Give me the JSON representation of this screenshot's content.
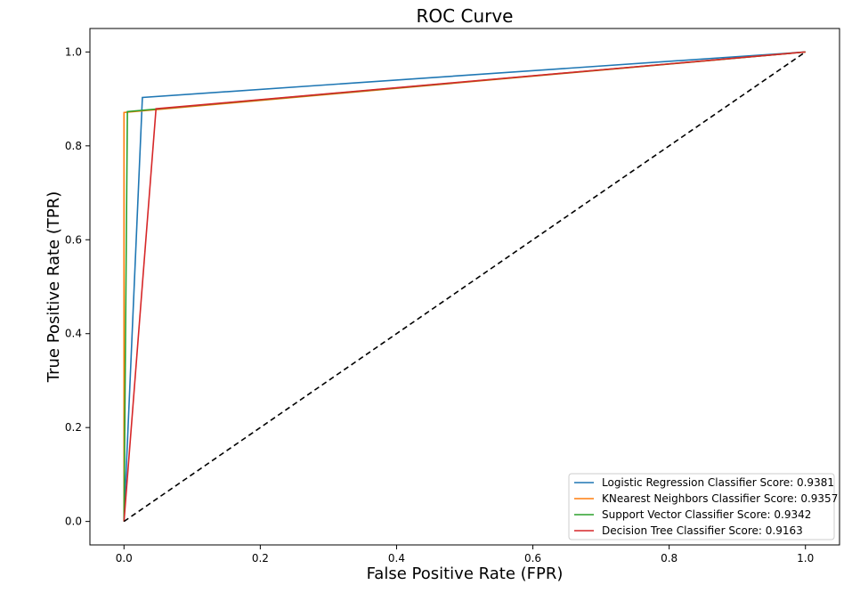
{
  "chart_data": {
    "type": "line",
    "title": "ROC Curve",
    "xlabel": "False Positive Rate (FPR)",
    "ylabel": "True Positive Rate (TPR)",
    "xlim": [
      -0.05,
      1.05
    ],
    "ylim": [
      -0.05,
      1.05
    ],
    "xticks": [
      0.0,
      0.2,
      0.4,
      0.6,
      0.8,
      1.0
    ],
    "yticks": [
      0.0,
      0.2,
      0.4,
      0.6,
      0.8,
      1.0
    ],
    "xtick_labels": [
      "0.0",
      "0.2",
      "0.4",
      "0.6",
      "0.8",
      "1.0"
    ],
    "ytick_labels": [
      "0.0",
      "0.2",
      "0.4",
      "0.6",
      "0.8",
      "1.0"
    ],
    "grid": false,
    "legend_position": "bottom-right",
    "series": [
      {
        "name": "Logistic Regression Classifier Score: 0.9381",
        "color": "#1f77b4",
        "x": [
          0.0,
          0.027,
          1.0
        ],
        "y": [
          0.0,
          0.903,
          1.0
        ]
      },
      {
        "name": "KNearest Neighbors Classifier Score: 0.9357",
        "color": "#ff7f0e",
        "x": [
          0.0,
          0.0,
          1.0
        ],
        "y": [
          0.0,
          0.871,
          1.0
        ]
      },
      {
        "name": "Support Vector Classifier Score: 0.9342",
        "color": "#2ca02c",
        "x": [
          0.0,
          0.005,
          1.0
        ],
        "y": [
          0.0,
          0.873,
          1.0
        ]
      },
      {
        "name": "Decision Tree Classifier Score: 0.9163",
        "color": "#d62728",
        "x": [
          0.0,
          0.047,
          1.0
        ],
        "y": [
          0.0,
          0.879,
          1.0
        ]
      }
    ],
    "reference_line": {
      "style": "dashed",
      "color": "#000000",
      "x": [
        0.0,
        1.0
      ],
      "y": [
        0.0,
        1.0
      ]
    }
  }
}
